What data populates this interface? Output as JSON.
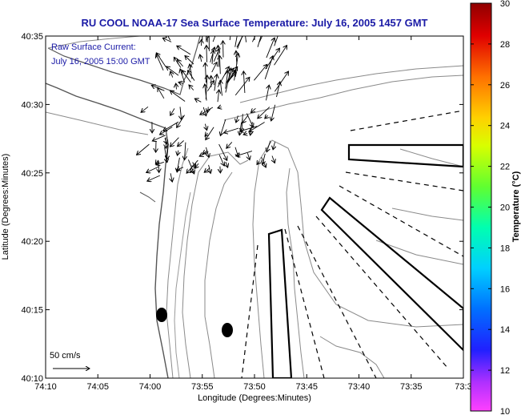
{
  "title": "RU COOL  NOAA-17  Sea Surface Temperature:  July 16, 2005 1457 GMT",
  "annotation": {
    "line1": "Raw Surface Current:",
    "line2": "July 16, 2005 15:00 GMT"
  },
  "axes": {
    "xlabel": "Longitude (Degrees:Minutes)",
    "ylabel": "Latitude (Degrees:Minutes)",
    "x_ticks": [
      "74:10",
      "74:05",
      "74:00",
      "73:55",
      "73:50",
      "73:45",
      "73:40",
      "73:35",
      "73:3"
    ],
    "y_ticks": [
      "40:35",
      "40:30",
      "40:25",
      "40:20",
      "40:15",
      "40:10"
    ]
  },
  "scale_vector": {
    "label": "50 cm/s",
    "speed": 50
  },
  "colorbar": {
    "label": "Temperature (°C)",
    "ticks": [
      "30",
      "28",
      "26",
      "24",
      "22",
      "20",
      "18",
      "16",
      "14",
      "12",
      "10"
    ],
    "min": 10,
    "max": 30
  },
  "markers": [
    {
      "name": "station-marker-1",
      "type": "filled-ellipse"
    },
    {
      "name": "station-marker-2",
      "type": "filled-ellipse"
    }
  ]
}
